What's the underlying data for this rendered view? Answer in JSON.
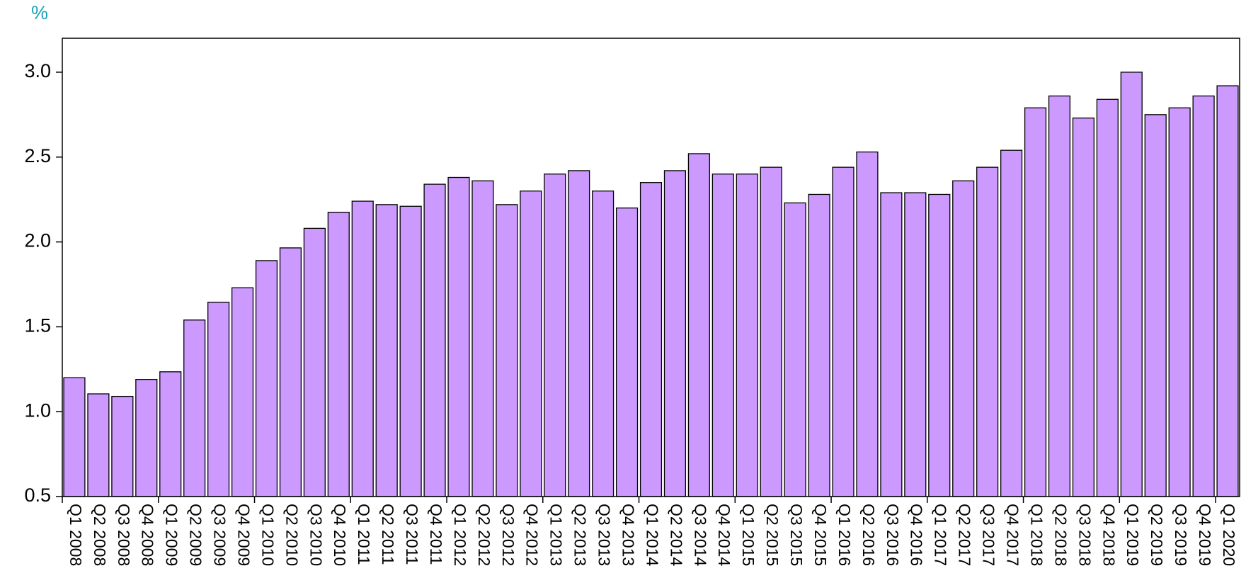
{
  "chart_data": {
    "type": "bar",
    "y_unit": "%",
    "categories": [
      "Q1 2008",
      "Q2 2008",
      "Q3 2008",
      "Q4 2008",
      "Q1 2009",
      "Q2 2009",
      "Q3 2009",
      "Q4 2009",
      "Q1 2010",
      "Q2 2010",
      "Q3 2010",
      "Q4 2010",
      "Q1 2011",
      "Q2 2011",
      "Q3 2011",
      "Q4 2011",
      "Q1 2012",
      "Q2 2012",
      "Q3 2012",
      "Q4 2012",
      "Q1 2013",
      "Q2 2013",
      "Q3 2013",
      "Q4 2013",
      "Q1 2014",
      "Q2 2014",
      "Q3 2014",
      "Q4 2014",
      "Q1 2015",
      "Q2 2015",
      "Q3 2015",
      "Q4 2015",
      "Q1 2016",
      "Q2 2016",
      "Q3 2016",
      "Q4 2016",
      "Q1 2017",
      "Q2 2017",
      "Q3 2017",
      "Q4 2017",
      "Q1 2018",
      "Q2 2018",
      "Q3 2018",
      "Q4 2018",
      "Q1 2019",
      "Q2 2019",
      "Q3 2019",
      "Q4 2019",
      "Q1 2020"
    ],
    "values": [
      1.2,
      1.105,
      1.09,
      1.19,
      1.235,
      1.54,
      1.645,
      1.73,
      1.89,
      1.965,
      2.08,
      2.175,
      2.24,
      2.22,
      2.21,
      2.34,
      2.38,
      2.36,
      2.22,
      2.3,
      2.4,
      2.42,
      2.3,
      2.2,
      2.35,
      2.42,
      2.52,
      2.4,
      2.4,
      2.44,
      2.23,
      2.28,
      2.44,
      2.53,
      2.29,
      2.29,
      2.28,
      2.36,
      2.44,
      2.54,
      2.79,
      2.86,
      2.73,
      2.84,
      3.0,
      2.75,
      2.79,
      2.86,
      2.92
    ],
    "color": "#cc99ff",
    "ylim": [
      0.5,
      3.2
    ],
    "yticks": [
      0.5,
      {
        "value": 1,
        "label": "1.0"
      },
      1.5,
      {
        "value": 2,
        "label": "2.0"
      },
      2.5,
      {
        "value": 3,
        "label": "3.0"
      }
    ],
    "grid": false
  }
}
